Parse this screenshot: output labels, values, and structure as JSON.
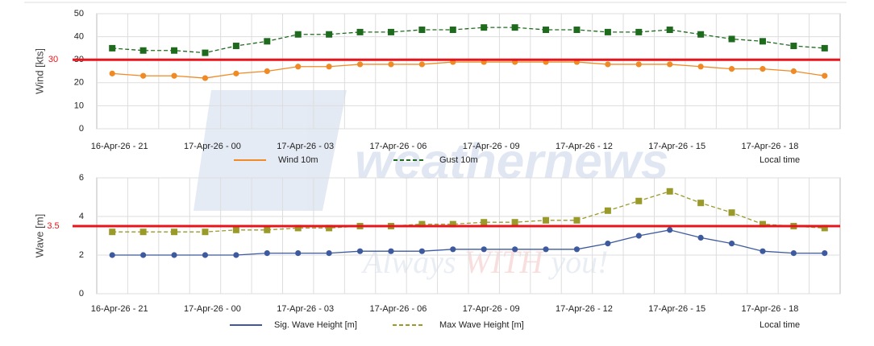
{
  "watermark": {
    "brand": "weathernews",
    "slogan_start": "Always ",
    "slogan_mid": "WITH",
    "slogan_end": " you!"
  },
  "chart_data": [
    {
      "type": "line",
      "y_label": "Wind [kts]",
      "categories": [
        "16-Apr-26 - 21",
        null,
        null,
        "17-Apr-26 - 00",
        null,
        null,
        "17-Apr-26 - 03",
        null,
        null,
        "17-Apr-26 - 06",
        null,
        null,
        "17-Apr-26 - 09",
        null,
        null,
        "17-Apr-26 - 12",
        null,
        null,
        "17-Apr-26 - 15",
        null,
        null,
        "17-Apr-26 - 18",
        null,
        null
      ],
      "series": [
        {
          "name": "Wind 10m",
          "color": "#f08a24",
          "marker": "circle",
          "dashed": false,
          "values": [
            24,
            23,
            23,
            22,
            24,
            25,
            27,
            27,
            28,
            28,
            28,
            29,
            29,
            29,
            29,
            29,
            28,
            28,
            28,
            27,
            26,
            26,
            25,
            23
          ]
        },
        {
          "name": "Gust 10m",
          "color": "#1e6b1e",
          "marker": "square",
          "dashed": true,
          "values": [
            35,
            34,
            34,
            33,
            36,
            38,
            41,
            41,
            42,
            42,
            43,
            43,
            44,
            44,
            43,
            43,
            42,
            42,
            43,
            41,
            39,
            38,
            36,
            35
          ]
        }
      ],
      "ylim": [
        0,
        50
      ],
      "yticks": [
        0,
        10,
        20,
        30,
        40,
        50
      ],
      "grid": true,
      "threshold": 30,
      "threshold_color": "#e8141b",
      "note": "Local time"
    },
    {
      "type": "line",
      "y_label": "Wave [m]",
      "categories": [
        "16-Apr-26 - 21",
        null,
        null,
        "17-Apr-26 - 00",
        null,
        null,
        "17-Apr-26 - 03",
        null,
        null,
        "17-Apr-26 - 06",
        null,
        null,
        "17-Apr-26 - 09",
        null,
        null,
        "17-Apr-26 - 12",
        null,
        null,
        "17-Apr-26 - 15",
        null,
        null,
        "17-Apr-26 - 18",
        null,
        null
      ],
      "series": [
        {
          "name": "Sig. Wave Height [m]",
          "color": "#3d5a9e",
          "marker": "circle",
          "dashed": false,
          "values": [
            2.0,
            2.0,
            2.0,
            2.0,
            2.0,
            2.1,
            2.1,
            2.1,
            2.2,
            2.2,
            2.2,
            2.3,
            2.3,
            2.3,
            2.3,
            2.3,
            2.6,
            3.0,
            3.3,
            2.9,
            2.6,
            2.2,
            2.1,
            2.1
          ]
        },
        {
          "name": "Max Wave Height [m]",
          "color": "#9a9a2a",
          "marker": "square",
          "dashed": true,
          "values": [
            3.2,
            3.2,
            3.2,
            3.2,
            3.3,
            3.3,
            3.4,
            3.4,
            3.5,
            3.5,
            3.6,
            3.6,
            3.7,
            3.7,
            3.8,
            3.8,
            4.3,
            4.8,
            5.3,
            4.7,
            4.2,
            3.6,
            3.5,
            3.4
          ]
        }
      ],
      "ylim": [
        0,
        6
      ],
      "yticks": [
        0,
        2,
        4,
        6
      ],
      "grid": true,
      "threshold": 3.5,
      "threshold_color": "#e8141b",
      "note": "Local time"
    }
  ]
}
